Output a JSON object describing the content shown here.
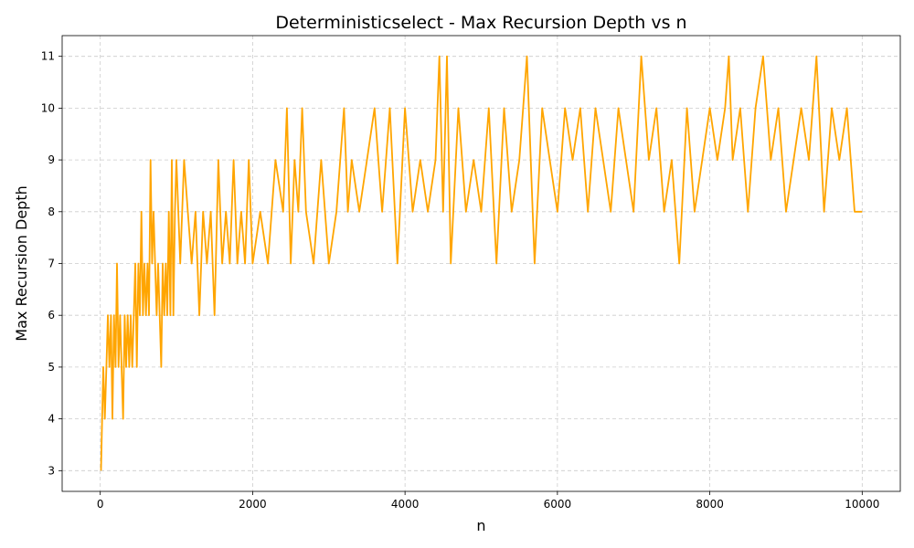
{
  "chart_data": {
    "type": "line",
    "title": "Deterministicselect - Max Recursion Depth vs n",
    "xlabel": "n",
    "ylabel": "Max Recursion Depth",
    "xlim": [
      -500,
      10500
    ],
    "ylim": [
      2.6,
      11.4
    ],
    "xticks": [
      0,
      2000,
      4000,
      6000,
      8000,
      10000
    ],
    "yticks": [
      3,
      4,
      5,
      6,
      7,
      8,
      9,
      10,
      11
    ],
    "grid": true,
    "legend": "none",
    "series": [
      {
        "color": "#ffa500",
        "x": [
          10,
          40,
          60,
          80,
          100,
          120,
          140,
          160,
          180,
          200,
          220,
          240,
          260,
          280,
          300,
          320,
          340,
          360,
          380,
          400,
          420,
          440,
          460,
          480,
          500,
          520,
          540,
          560,
          580,
          600,
          620,
          640,
          660,
          680,
          700,
          720,
          740,
          760,
          780,
          800,
          820,
          840,
          860,
          880,
          900,
          920,
          940,
          960,
          980,
          1000,
          1050,
          1100,
          1150,
          1200,
          1250,
          1300,
          1350,
          1400,
          1450,
          1500,
          1550,
          1600,
          1650,
          1700,
          1750,
          1800,
          1850,
          1900,
          1950,
          2000,
          2100,
          2200,
          2300,
          2400,
          2450,
          2500,
          2550,
          2600,
          2650,
          2700,
          2800,
          2900,
          3000,
          3100,
          3200,
          3250,
          3300,
          3400,
          3500,
          3600,
          3700,
          3800,
          3900,
          4000,
          4100,
          4200,
          4300,
          4400,
          4450,
          4500,
          4550,
          4600,
          4700,
          4800,
          4900,
          5000,
          5100,
          5200,
          5300,
          5400,
          5500,
          5600,
          5700,
          5800,
          5900,
          6000,
          6100,
          6200,
          6300,
          6400,
          6500,
          6600,
          6700,
          6800,
          6900,
          7000,
          7100,
          7200,
          7300,
          7400,
          7500,
          7600,
          7700,
          7800,
          7900,
          8000,
          8100,
          8200,
          8250,
          8300,
          8400,
          8500,
          8600,
          8700,
          8800,
          8900,
          9000,
          9100,
          9200,
          9300,
          9400,
          9500,
          9600,
          9700,
          9800,
          9900,
          10000
        ],
        "values": [
          3,
          5,
          4,
          5,
          6,
          5,
          6,
          4,
          6,
          5,
          7,
          5,
          6,
          5,
          4,
          6,
          5,
          6,
          5,
          6,
          5,
          6,
          7,
          5,
          7,
          6,
          8,
          6,
          7,
          6,
          7,
          6,
          9,
          7,
          8,
          7,
          6,
          7,
          6,
          5,
          7,
          6,
          7,
          6,
          8,
          6,
          9,
          6,
          8,
          9,
          7,
          9,
          8,
          7,
          8,
          6,
          8,
          7,
          8,
          6,
          9,
          7,
          8,
          7,
          9,
          7,
          8,
          7,
          9,
          7,
          8,
          7,
          9,
          8,
          10,
          7,
          9,
          8,
          10,
          8,
          7,
          9,
          7,
          8,
          10,
          8,
          9,
          8,
          9,
          10,
          8,
          10,
          7,
          10,
          8,
          9,
          8,
          9,
          11,
          8,
          11,
          7,
          10,
          8,
          9,
          8,
          10,
          7,
          10,
          8,
          9,
          11,
          7,
          10,
          9,
          8,
          10,
          9,
          10,
          8,
          10,
          9,
          8,
          10,
          9,
          8,
          11,
          9,
          10,
          8,
          9,
          7,
          10,
          8,
          9,
          10,
          9,
          10,
          11,
          9,
          10,
          8,
          10,
          11,
          9,
          10,
          8,
          9,
          10,
          9,
          11,
          8,
          10,
          9,
          10,
          8,
          8
        ]
      }
    ]
  }
}
